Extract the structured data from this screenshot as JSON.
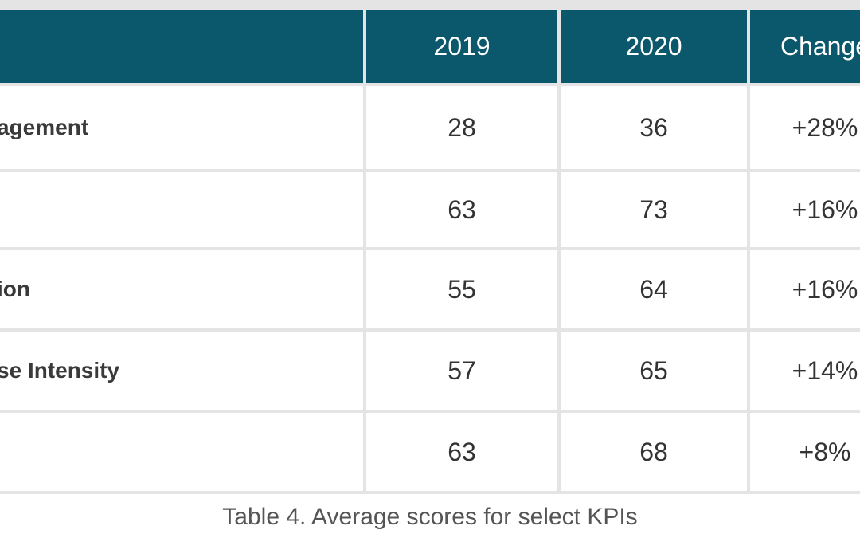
{
  "table": {
    "header": [
      "",
      "2019",
      "2020",
      "Change"
    ],
    "rows": [
      [
        "agement",
        28,
        36,
        "+28%"
      ],
      [
        "",
        63,
        73,
        "+16%"
      ],
      [
        "ion",
        55,
        64,
        "+16%"
      ],
      [
        "se Intensity",
        57,
        65,
        "+14%"
      ],
      [
        "",
        63,
        68,
        "+8%"
      ]
    ]
  },
  "caption": "Table 4. Average scores for select KPIs"
}
